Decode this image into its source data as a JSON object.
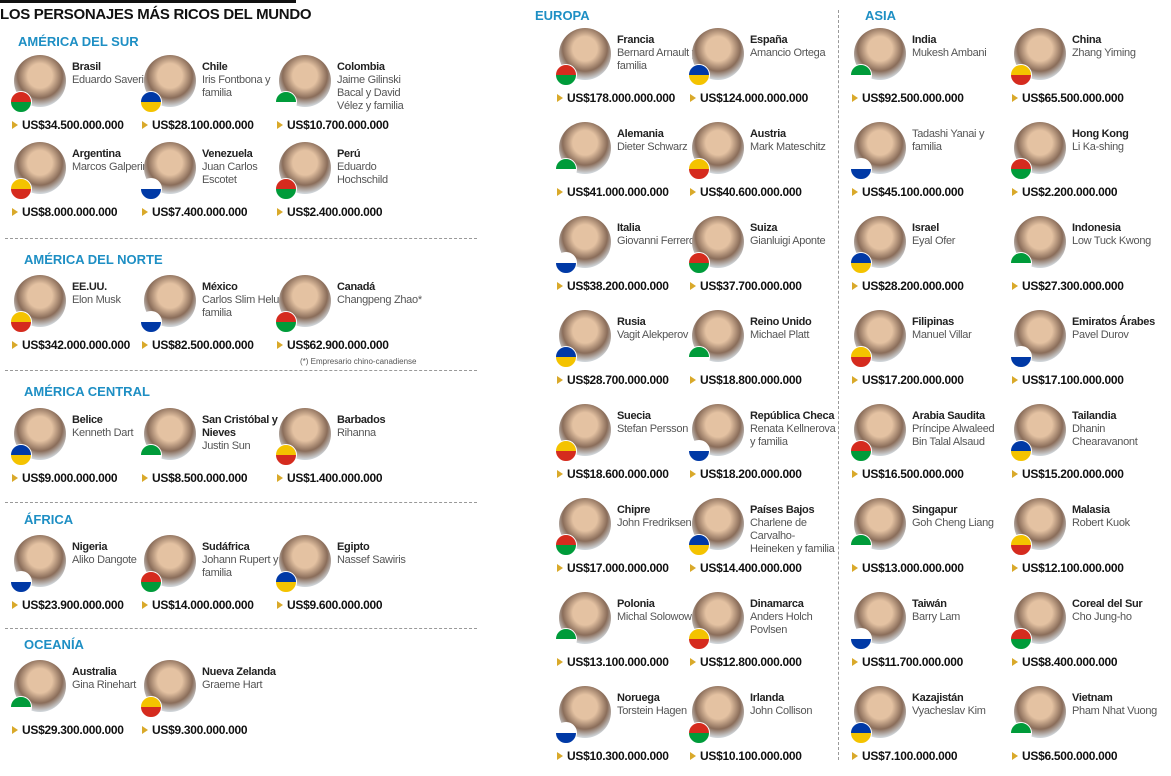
{
  "header": {
    "title": "LOS PERSONAJES MÁS RICOS DEL MUNDO"
  },
  "note": "(*) Empresario chino-canadiense",
  "sections": [
    {
      "title": "AMÉRICA DEL SUR",
      "people": [
        {
          "country": "Brasil",
          "name": "Eduardo Saverin",
          "amount": "US$34.500.000.000"
        },
        {
          "country": "Chile",
          "name": "Iris Fontbona y familia",
          "amount": "US$28.100.000.000"
        },
        {
          "country": "Colombia",
          "name": "Jaime Gilinski Bacal y David Vélez y familia",
          "amount": "US$10.700.000.000"
        },
        {
          "country": "Argentina",
          "name": "Marcos Galperin",
          "amount": "US$8.000.000.000"
        },
        {
          "country": "Venezuela",
          "name": "Juan Carlos Escotet",
          "amount": "US$7.400.000.000"
        },
        {
          "country": "Perú",
          "name": "Eduardo Hochschild",
          "amount": "US$2.400.000.000"
        }
      ]
    },
    {
      "title": "AMÉRICA DEL NORTE",
      "people": [
        {
          "country": "EE.UU.",
          "name": "Elon Musk",
          "amount": "US$342.000.000.000"
        },
        {
          "country": "México",
          "name": "Carlos Slim Helu y familia",
          "amount": "US$82.500.000.000"
        },
        {
          "country": "Canadá",
          "name": "Changpeng Zhao*",
          "amount": "US$62.900.000.000"
        }
      ]
    },
    {
      "title": "AMÉRICA CENTRAL",
      "people": [
        {
          "country": "Belice",
          "name": "Kenneth Dart",
          "amount": "US$9.000.000.000"
        },
        {
          "country": "San Cristóbal y Nieves",
          "name": "Justin Sun",
          "amount": "US$8.500.000.000"
        },
        {
          "country": "Barbados",
          "name": "Rihanna",
          "amount": "US$1.400.000.000"
        }
      ]
    },
    {
      "title": "ÁFRICA",
      "people": [
        {
          "country": "Nigeria",
          "name": "Aliko Dangote",
          "amount": "US$23.900.000.000"
        },
        {
          "country": "Sudáfrica",
          "name": "Johann Rupert y familia",
          "amount": "US$14.000.000.000"
        },
        {
          "country": "Egipto",
          "name": "Nassef Sawiris",
          "amount": "US$9.600.000.000"
        }
      ]
    },
    {
      "title": "OCEANÍA",
      "people": [
        {
          "country": "Australia",
          "name": "Gina Rinehart",
          "amount": "US$29.300.000.000"
        },
        {
          "country": "Nueva Zelanda",
          "name": "Graeme Hart",
          "amount": "US$9.300.000.000"
        }
      ]
    },
    {
      "title": "EUROPA",
      "people": [
        {
          "country": "Francia",
          "name": "Bernard Arnault y familia",
          "amount": "US$178.000.000.000"
        },
        {
          "country": "España",
          "name": "Amancio Ortega",
          "amount": "US$124.000.000.000"
        },
        {
          "country": "Alemania",
          "name": "Dieter Schwarz",
          "amount": "US$41.000.000.000"
        },
        {
          "country": "Austria",
          "name": "Mark Mateschitz",
          "amount": "US$40.600.000.000"
        },
        {
          "country": "Italia",
          "name": "Giovanni Ferrero",
          "amount": "US$38.200.000.000"
        },
        {
          "country": "Suiza",
          "name": "Gianluigi Aponte",
          "amount": "US$37.700.000.000"
        },
        {
          "country": "Rusia",
          "name": "Vagit Alekperov",
          "amount": "US$28.700.000.000"
        },
        {
          "country": "Reino Unido",
          "name": "Michael Platt",
          "amount": "US$18.800.000.000"
        },
        {
          "country": "Suecia",
          "name": "Stefan Persson",
          "amount": "US$18.600.000.000"
        },
        {
          "country": "República Checa",
          "name": "Renata Kellnerova y familia",
          "amount": "US$18.200.000.000"
        },
        {
          "country": "Chipre",
          "name": "John Fredriksen",
          "amount": "US$17.000.000.000"
        },
        {
          "country": "Países Bajos",
          "name": "Charlene de Carvalho-Heineken y familia",
          "amount": "US$14.400.000.000"
        },
        {
          "country": "Polonia",
          "name": "Michal Solowow",
          "amount": "US$13.100.000.000"
        },
        {
          "country": "Dinamarca",
          "name": "Anders Holch Povlsen",
          "amount": "US$12.800.000.000"
        },
        {
          "country": "Noruega",
          "name": "Torstein Hagen",
          "amount": "US$10.300.000.000"
        },
        {
          "country": "Irlanda",
          "name": "John Collison",
          "amount": "US$10.100.000.000"
        }
      ]
    },
    {
      "title": "ASIA",
      "people": [
        {
          "country": "India",
          "name": "Mukesh Ambani",
          "amount": "US$92.500.000.000"
        },
        {
          "country": "China",
          "name": "Zhang Yiming",
          "amount": "US$65.500.000.000"
        },
        {
          "name": "Tadashi Yanai y familia",
          "amount": "US$45.100.000.000"
        },
        {
          "country": "Hong Kong",
          "name": "Li Ka-shing",
          "amount": "US$2.200.000.000"
        },
        {
          "country": "Israel",
          "name": "Eyal Ofer",
          "amount": "US$28.200.000.000"
        },
        {
          "country": "Indonesia",
          "name": "Low Tuck Kwong",
          "amount": "US$27.300.000.000"
        },
        {
          "country": "Filipinas",
          "name": "Manuel Villar",
          "amount": "US$17.200.000.000"
        },
        {
          "country": "Emiratos Árabes",
          "name": "Pavel Durov",
          "amount": "US$17.100.000.000"
        },
        {
          "country": "Arabia Saudita",
          "name": "Príncipe Alwaleed Bin Talal Alsaud",
          "amount": "US$16.500.000.000"
        },
        {
          "country": "Tailandia",
          "name": "Dhanin Chearavanont",
          "amount": "US$15.200.000.000"
        },
        {
          "country": "Singapur",
          "name": "Goh Cheng Liang",
          "amount": "US$13.000.000.000"
        },
        {
          "country": "Malasia",
          "name": "Robert Kuok",
          "amount": "US$12.100.000.000"
        },
        {
          "country": "Taiwán",
          "name": "Barry Lam",
          "amount": "US$11.700.000.000"
        },
        {
          "country": "Coreal del Sur",
          "name": "Cho Jung-ho",
          "amount": "US$8.400.000.000"
        },
        {
          "country": "Kazajistán",
          "name": "Vyacheslav Kim",
          "amount": "US$7.100.000.000"
        },
        {
          "country": "Vietnam",
          "name": "Pham Nhat Vuong",
          "amount": "US$6.500.000.000"
        }
      ]
    }
  ]
}
